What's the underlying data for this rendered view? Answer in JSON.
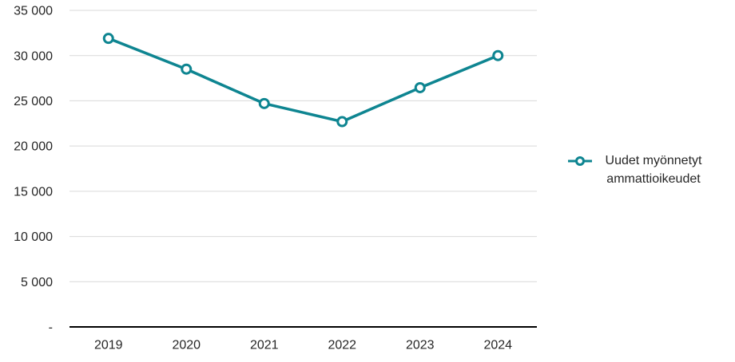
{
  "chart_data": {
    "type": "line",
    "title": "",
    "categories": [
      "2019",
      "2020",
      "2021",
      "2022",
      "2023",
      "2024"
    ],
    "series": [
      {
        "name": "Uudet myönnetyt ammattioikeudet",
        "values": [
          31900,
          28500,
          24700,
          22700,
          26450,
          30000
        ]
      }
    ],
    "xlabel": "",
    "ylabel": "",
    "ylim": [
      0,
      35000
    ],
    "ytick_interval": 5000,
    "yticks": [
      {
        "value": 0,
        "label": "-"
      },
      {
        "value": 5000,
        "label": "5 000"
      },
      {
        "value": 10000,
        "label": "10 000"
      },
      {
        "value": 15000,
        "label": "15 000"
      },
      {
        "value": 20000,
        "label": "20 000"
      },
      {
        "value": 25000,
        "label": "25 000"
      },
      {
        "value": 30000,
        "label": "30 000"
      },
      {
        "value": 35000,
        "label": "35 000"
      }
    ],
    "grid": "horizontal-gridlines-on",
    "legend_position": "right",
    "marker_style": "open-circle",
    "colors": {
      "line": "#0e8591",
      "marker_fill": "#ffffff",
      "gridline": "#d9d9d9",
      "axis": "#000000",
      "text": "#262626",
      "background": "#ffffff"
    }
  },
  "legend": {
    "label": "Uudet myönnetyt ammattioikeudet"
  }
}
